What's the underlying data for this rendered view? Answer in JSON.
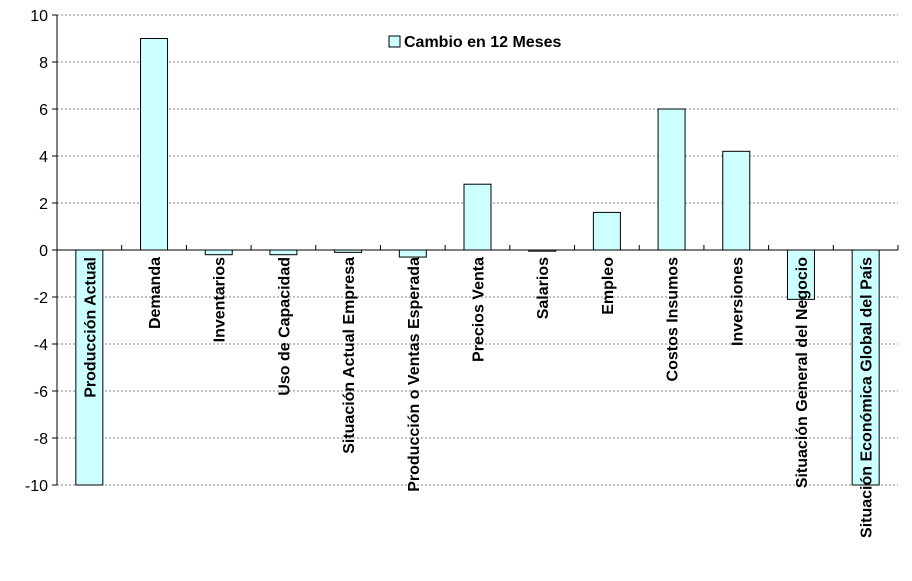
{
  "chart_data": {
    "type": "bar",
    "categories": [
      "Producción Actual",
      "Demanda",
      "Inventarios",
      "Uso de Capacidad",
      "Situación Actual Empresa",
      "Producción o Ventas Esperada",
      "Precios Venta",
      "Salarios",
      "Empleo",
      "Costos Insumos",
      "Inversiones",
      "Situación General del Negocio",
      "Situación Económica Global del País"
    ],
    "series": [
      {
        "name": "Cambio en 12 Meses",
        "values": [
          -10,
          9,
          -0.2,
          -0.2,
          -0.1,
          -0.3,
          2.8,
          -0.05,
          1.6,
          6.0,
          4.2,
          -2.1,
          -10
        ]
      }
    ],
    "ylim": [
      -10,
      10
    ],
    "yticks": [
      10,
      8,
      6,
      4,
      2,
      0,
      -2,
      -4,
      -6,
      -8,
      -10
    ],
    "grid": true,
    "legend_position": "top",
    "colors": {
      "bar_fill": "#ccffff",
      "bar_stroke": "#000000",
      "grid": "#808080"
    }
  }
}
